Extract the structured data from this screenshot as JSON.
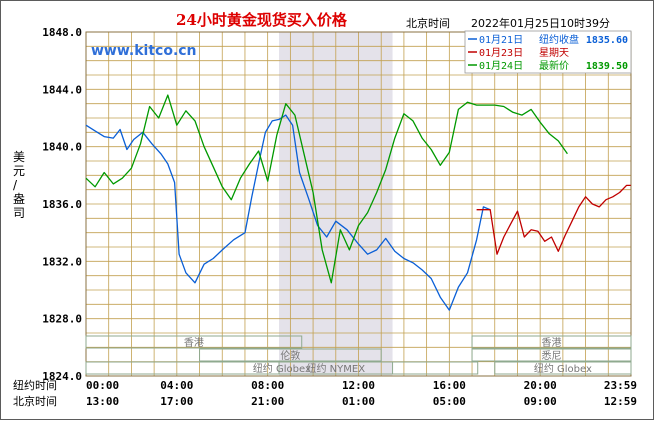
{
  "header": {
    "title": "24小时黄金现货买入价格",
    "time_label": "北京时间",
    "timestamp": "2022年01月25日10时39分"
  },
  "logo": {
    "text": "www.kitco.cn"
  },
  "y_axis_title": [
    "美",
    "元",
    "/",
    "盎",
    "司"
  ],
  "legend": [
    {
      "date": "01月21日",
      "desc": "纽约收盘",
      "value": "1835.60",
      "color": "#0a5fd6"
    },
    {
      "date": "01月23日",
      "desc": "星期天",
      "value": "",
      "color": "#c00000"
    },
    {
      "date": "01月24日",
      "desc": "最新价",
      "value": "1839.50",
      "color": "#009900"
    }
  ],
  "sessions": [
    {
      "name": "香港",
      "start": 0.0,
      "end": 9.5
    },
    {
      "name": "伦敦",
      "start": 5.0,
      "end": 13.0
    },
    {
      "name": "纽约 NYMEX",
      "start": 8.5,
      "end": 13.5
    },
    {
      "name": "纽约 Globex",
      "start": 0.0,
      "end": 17.25
    },
    {
      "name": "纽约 Globex",
      "start": 18.0,
      "end": 24.0
    },
    {
      "name": "香港",
      "start": 17.0,
      "end": 24.0
    },
    {
      "name": "悉尼",
      "start": 17.0,
      "end": 24.0
    }
  ],
  "row_labels": {
    "ny": "纽约时间",
    "bj": "北京时间"
  },
  "x_ny_ticks": [
    "00:00",
    "04:00",
    "08:00",
    "12:00",
    "16:00",
    "20:00",
    "23:59"
  ],
  "x_bj_ticks": [
    "13:00",
    "17:00",
    "21:00",
    "01:00",
    "05:00",
    "09:00",
    "12:59"
  ],
  "chart_data": {
    "type": "line",
    "title": "24小时黄金现货买入价格",
    "ylabel": "美元/盎司",
    "ylim": [
      1824.0,
      1848.0
    ],
    "y_ticks": [
      "1824.0",
      "1828.0",
      "1832.0",
      "1836.0",
      "1840.0",
      "1844.0",
      "1848.0"
    ],
    "xlim": [
      0,
      24
    ],
    "shaded_range_hours": [
      8.5,
      13.5
    ],
    "series": [
      {
        "name": "01月21日",
        "color": "#0a5fd6",
        "x": [
          0,
          0.4,
          0.8,
          1.2,
          1.5,
          1.8,
          2.1,
          2.5,
          2.9,
          3.3,
          3.6,
          3.9,
          4.1,
          4.4,
          4.8,
          5.2,
          5.6,
          6.0,
          6.5,
          7.0,
          7.3,
          7.6,
          7.9,
          8.2,
          8.5,
          8.8,
          9.1,
          9.4,
          9.8,
          10.2,
          10.6,
          11.0,
          11.5,
          12.0,
          12.4,
          12.8,
          13.2,
          13.6,
          14.0,
          14.4,
          14.8,
          15.2,
          15.6,
          16.0,
          16.4,
          16.8,
          17.2,
          17.5,
          17.8
        ],
        "y": [
          1841.5,
          1841.1,
          1840.7,
          1840.6,
          1841.2,
          1839.8,
          1840.5,
          1841.0,
          1840.2,
          1839.5,
          1838.8,
          1837.5,
          1832.5,
          1831.2,
          1830.5,
          1831.8,
          1832.2,
          1832.8,
          1833.5,
          1834.0,
          1836.5,
          1838.8,
          1841.0,
          1841.8,
          1841.9,
          1842.2,
          1841.5,
          1838.2,
          1836.4,
          1834.5,
          1833.7,
          1834.8,
          1834.2,
          1833.2,
          1832.5,
          1832.8,
          1833.6,
          1832.7,
          1832.2,
          1831.9,
          1831.4,
          1830.8,
          1829.5,
          1828.6,
          1830.2,
          1831.2,
          1833.5,
          1835.8,
          1835.6
        ]
      },
      {
        "name": "01月23日",
        "color": "#c00000",
        "x": [
          17.2,
          17.5,
          17.8,
          18.1,
          18.4,
          18.7,
          19.0,
          19.3,
          19.6,
          19.9,
          20.2,
          20.5,
          20.8,
          21.1,
          21.4,
          21.7,
          22.0,
          22.3,
          22.6,
          22.9,
          23.2,
          23.5,
          23.8,
          23.99
        ],
        "y": [
          1835.6,
          1835.6,
          1835.6,
          1832.5,
          1833.7,
          1834.6,
          1835.5,
          1833.7,
          1834.2,
          1834.1,
          1833.4,
          1833.7,
          1832.7,
          1833.8,
          1834.8,
          1835.8,
          1836.5,
          1836.0,
          1835.8,
          1836.3,
          1836.5,
          1836.8,
          1837.3,
          1837.3
        ]
      },
      {
        "name": "01月24日",
        "color": "#009900",
        "x": [
          0,
          0.4,
          0.8,
          1.2,
          1.6,
          2.0,
          2.4,
          2.8,
          3.2,
          3.6,
          4.0,
          4.4,
          4.8,
          5.2,
          5.6,
          6.0,
          6.4,
          6.8,
          7.2,
          7.6,
          8.0,
          8.4,
          8.8,
          9.2,
          9.6,
          10.0,
          10.4,
          10.8,
          11.2,
          11.6,
          12.0,
          12.4,
          12.8,
          13.2,
          13.6,
          14.0,
          14.4,
          14.8,
          15.2,
          15.6,
          16.0,
          16.4,
          16.8,
          17.2,
          17.6,
          18.0,
          18.4,
          18.8,
          19.2,
          19.6,
          20.0,
          20.4,
          20.8,
          21.2
        ],
        "y": [
          1837.8,
          1837.2,
          1838.2,
          1837.4,
          1837.8,
          1838.5,
          1840.2,
          1842.8,
          1842.0,
          1843.6,
          1841.5,
          1842.5,
          1841.8,
          1840.0,
          1838.6,
          1837.2,
          1836.3,
          1837.8,
          1838.8,
          1839.7,
          1837.6,
          1840.8,
          1843.0,
          1842.2,
          1839.5,
          1836.8,
          1832.8,
          1830.5,
          1834.2,
          1832.8,
          1834.5,
          1835.4,
          1836.8,
          1838.4,
          1840.6,
          1842.3,
          1841.8,
          1840.6,
          1839.8,
          1838.7,
          1839.6,
          1842.6,
          1843.1,
          1842.9,
          1842.9,
          1842.9,
          1842.8,
          1842.4,
          1842.2,
          1842.6,
          1841.7,
          1840.9,
          1840.4,
          1839.5
        ]
      }
    ]
  }
}
